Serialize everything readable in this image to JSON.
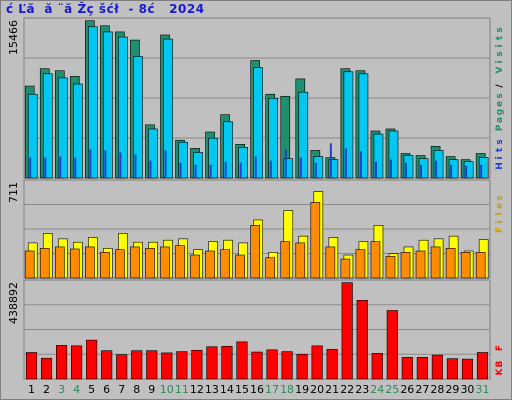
{
  "title": "ć Ľă  ă ¨ă Žç šćł  - 8ć   2024",
  "colors": {
    "visits": "#1f8f6f",
    "pages": "#00c8f0",
    "hits_dark": "#2040d0",
    "files": "#ffff00",
    "files_dark": "#ff8c00",
    "kbytes": "#ff0000",
    "weekend_label": "#2a8a5a",
    "weekday_label": "#000000",
    "panel_bg": "#c0c0c0",
    "grid": "#8a8a8a"
  },
  "chart_data": [
    {
      "type": "bar",
      "panel": "top",
      "ylabel": "15466",
      "ylim": [
        0,
        15466
      ],
      "categories": [
        "1",
        "2",
        "3",
        "4",
        "5",
        "6",
        "7",
        "8",
        "9",
        "10",
        "11",
        "12",
        "13",
        "14",
        "15",
        "16",
        "17",
        "18",
        "19",
        "20",
        "21",
        "22",
        "23",
        "24",
        "25",
        "26",
        "27",
        "28",
        "29",
        "30",
        "31"
      ],
      "weekend_days": [
        "3",
        "4",
        "10",
        "11",
        "17",
        "18",
        "24",
        "25",
        "31"
      ],
      "series": [
        {
          "name": "",
          "color_key": "visits",
          "values": [
            9000,
            10700,
            10500,
            9950,
            15400,
            14900,
            14300,
            13500,
            5200,
            14000,
            3700,
            2900,
            4500,
            6200,
            3300,
            11500,
            8200,
            8000,
            9700,
            2700,
            2000,
            10700,
            10500,
            4600,
            4800,
            2400,
            2200,
            3100,
            2100,
            1800,
            2400
          ]
        },
        {
          "name": "",
          "color_key": "pages",
          "values": [
            8200,
            10200,
            9800,
            9200,
            14800,
            14300,
            13800,
            11900,
            4800,
            13600,
            3500,
            2500,
            3900,
            5500,
            3000,
            10800,
            7800,
            1900,
            8400,
            2100,
            1800,
            10400,
            10200,
            4300,
            4600,
            2200,
            1900,
            2700,
            1800,
            1600,
            2000
          ]
        },
        {
          "name": "",
          "color_key": "hits_dark",
          "values": [
            2000,
            2000,
            2100,
            2000,
            2800,
            2700,
            2500,
            2300,
            1700,
            2700,
            1500,
            1300,
            1300,
            1600,
            1500,
            2100,
            1700,
            2800,
            2000,
            1500,
            3400,
            2900,
            2600,
            1600,
            1800,
            1500,
            1300,
            1700,
            1300,
            1200,
            1300
          ]
        }
      ]
    },
    {
      "type": "bar",
      "panel": "middle",
      "ylabel": "711",
      "ylim": [
        0,
        711
      ],
      "categories": [
        "1",
        "2",
        "3",
        "4",
        "5",
        "6",
        "7",
        "8",
        "9",
        "10",
        "11",
        "12",
        "13",
        "14",
        "15",
        "16",
        "17",
        "18",
        "19",
        "20",
        "21",
        "22",
        "23",
        "24",
        "25",
        "26",
        "27",
        "28",
        "29",
        "30",
        "31"
      ],
      "series": [
        {
          "name": "",
          "color_key": "files",
          "values": [
            260,
            330,
            290,
            265,
            300,
            220,
            330,
            265,
            265,
            280,
            290,
            210,
            270,
            280,
            260,
            430,
            190,
            500,
            310,
            640,
            300,
            170,
            270,
            390,
            180,
            230,
            280,
            290,
            310,
            200,
            285
          ]
        },
        {
          "name": "",
          "color_key": "files_dark",
          "values": [
            200,
            220,
            230,
            215,
            230,
            190,
            210,
            230,
            220,
            230,
            240,
            170,
            200,
            210,
            170,
            390,
            150,
            270,
            260,
            560,
            230,
            140,
            210,
            270,
            160,
            190,
            200,
            230,
            220,
            190,
            190
          ]
        }
      ]
    },
    {
      "type": "bar",
      "panel": "bottom",
      "ylabel": "438892",
      "ylim": [
        0,
        438892
      ],
      "categories": [
        "1",
        "2",
        "3",
        "4",
        "5",
        "6",
        "7",
        "8",
        "9",
        "10",
        "11",
        "12",
        "13",
        "14",
        "15",
        "16",
        "17",
        "18",
        "19",
        "20",
        "21",
        "22",
        "23",
        "24",
        "25",
        "26",
        "27",
        "28",
        "29",
        "30",
        "31"
      ],
      "series": [
        {
          "name": "",
          "color_key": "kbytes",
          "values": [
            120000,
            94000,
            152000,
            150000,
            176000,
            128000,
            110000,
            128000,
            128000,
            118000,
            124000,
            130000,
            146000,
            148000,
            168000,
            122000,
            132000,
            124000,
            112000,
            150000,
            134000,
            436000,
            356000,
            116000,
            310000,
            98000,
            98000,
            108000,
            92000,
            90000,
            120000
          ]
        }
      ]
    }
  ],
  "legend": {
    "right_top": [
      "V",
      "i",
      "s",
      "i",
      "t",
      "s"
    ],
    "right_middle_a": [
      "P",
      "a",
      "g",
      "e",
      "s"
    ],
    "right_middle_b": [
      "/"
    ],
    "right_middle_c": [
      "H",
      "i",
      "t",
      "s"
    ],
    "right_middle_d": [
      "F",
      "i",
      "l",
      "e",
      "s"
    ],
    "right_bottom": [
      "K",
      "B",
      " ",
      "F"
    ]
  }
}
